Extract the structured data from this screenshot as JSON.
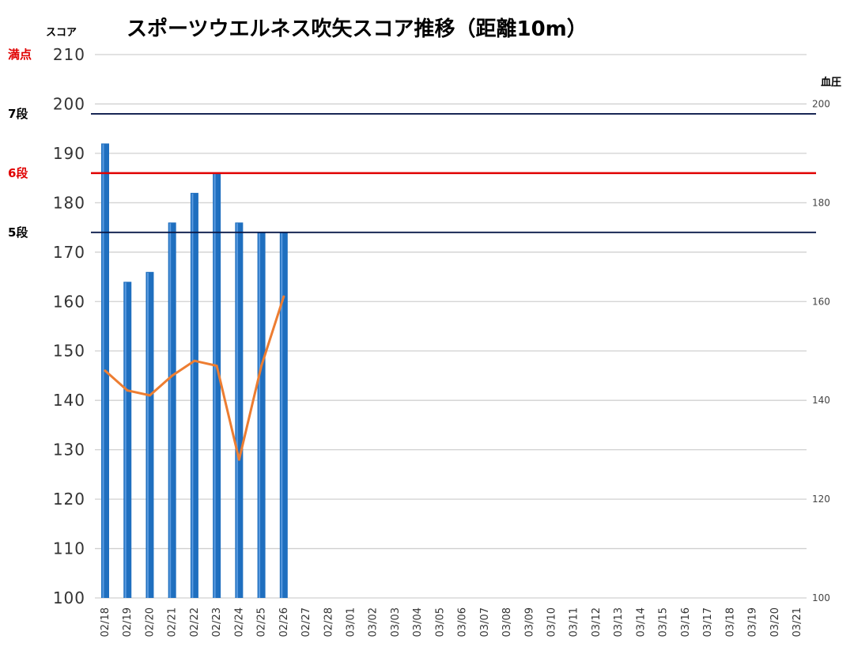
{
  "chart_data": {
    "type": "bar",
    "title": "スポーツウエルネス吹矢スコア推移（距離10m）",
    "ylabel": "スコア",
    "y2label": "血圧",
    "ylim": [
      100,
      210
    ],
    "y2lim": [
      100,
      210
    ],
    "yticks": [
      "100",
      "110",
      "120",
      "130",
      "140",
      "150",
      "160",
      "170",
      "180",
      "190",
      "200",
      "210"
    ],
    "y2ticks": [
      "100",
      "120",
      "140",
      "160",
      "180",
      "200"
    ],
    "grid": true,
    "legend": "none",
    "categories": [
      "02/18",
      "02/19",
      "02/20",
      "02/21",
      "02/22",
      "02/23",
      "02/24",
      "02/25",
      "02/26",
      "02/27",
      "02/28",
      "03/01",
      "03/02",
      "03/03",
      "03/04",
      "03/05",
      "03/06",
      "03/07",
      "03/08",
      "03/09",
      "03/10",
      "03/11",
      "03/12",
      "03/13",
      "03/14",
      "03/15",
      "03/16",
      "03/17",
      "03/18",
      "03/19",
      "03/20",
      "03/21"
    ],
    "series": [
      {
        "type": "bar",
        "axis": "left",
        "color": "#1f6fbf",
        "values": [
          192,
          164,
          166,
          176,
          182,
          186,
          176,
          174,
          174,
          null,
          null,
          null,
          null,
          null,
          null,
          null,
          null,
          null,
          null,
          null,
          null,
          null,
          null,
          null,
          null,
          null,
          null,
          null,
          null,
          null,
          null,
          null
        ]
      },
      {
        "type": "line",
        "axis": "right",
        "color": "#ed7d31",
        "values": [
          146,
          142,
          141,
          145,
          148,
          147,
          128,
          147,
          161,
          null,
          null,
          null,
          null,
          null,
          null,
          null,
          null,
          null,
          null,
          null,
          null,
          null,
          null,
          null,
          null,
          null,
          null,
          null,
          null,
          null,
          null,
          null
        ]
      }
    ],
    "reference_lines": [
      {
        "label": "満点",
        "value": 210,
        "color": "#e00000",
        "draw_line": false
      },
      {
        "label": "7段",
        "value": 198,
        "color": "#000000",
        "line_color": "#0a1a4a",
        "draw_line": true
      },
      {
        "label": "6段",
        "value": 186,
        "color": "#e00000",
        "line_color": "#e00000",
        "draw_line": true
      },
      {
        "label": "5段",
        "value": 174,
        "color": "#000000",
        "line_color": "#0a1a4a",
        "draw_line": true
      }
    ]
  }
}
